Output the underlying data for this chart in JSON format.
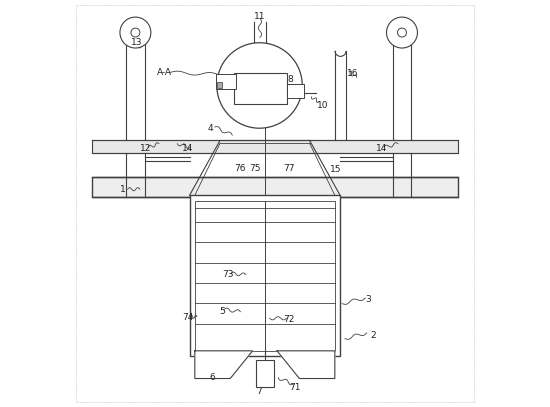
{
  "background_color": "#ffffff",
  "line_color": "#404040",
  "label_color": "#222222"
}
